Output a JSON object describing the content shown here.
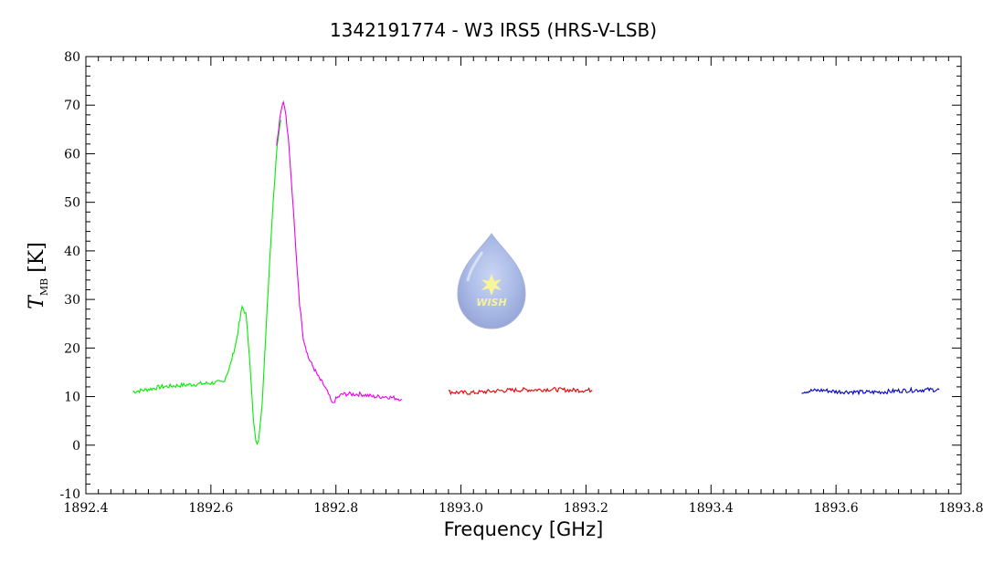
{
  "chart_data": {
    "type": "line",
    "title": "1342191774 - W3 IRS5 (HRS-V-LSB)",
    "xlabel": "Frequency [GHz]",
    "ylabel": {
      "main": "T",
      "sub": "MB",
      "unit": "[K]"
    },
    "xlim": [
      1892.4,
      1893.8
    ],
    "ylim": [
      -10,
      80
    ],
    "x_ticks": [
      "1892.4",
      "1892.6",
      "1892.8",
      "1893.0",
      "1893.2",
      "1893.4",
      "1893.6",
      "1893.8"
    ],
    "y_ticks": [
      "-10",
      "0",
      "10",
      "20",
      "30",
      "40",
      "50",
      "60",
      "70",
      "80"
    ],
    "grid": false,
    "logo": {
      "text": "WISH"
    },
    "series": [
      {
        "color": "#00ee00",
        "x": [
          1892.475,
          1892.5,
          1892.52,
          1892.54,
          1892.56,
          1892.58,
          1892.6,
          1892.62,
          1892.63,
          1892.64,
          1892.65,
          1892.656,
          1892.662,
          1892.668,
          1892.672,
          1892.676,
          1892.682,
          1892.688,
          1892.694,
          1892.7,
          1892.706,
          1892.712
        ],
        "y": [
          11.0,
          11.5,
          12.0,
          12.2,
          12.4,
          12.6,
          12.8,
          13.0,
          16.0,
          21.0,
          28.5,
          27.0,
          18.0,
          5.0,
          0.5,
          0.5,
          9.0,
          23.0,
          38.0,
          51.0,
          62.0,
          67.0
        ]
      },
      {
        "color": "#ee00ee",
        "x": [
          1892.705,
          1892.712,
          1892.716,
          1892.72,
          1892.724,
          1892.73,
          1892.736,
          1892.742,
          1892.748,
          1892.756,
          1892.764,
          1892.772,
          1892.78,
          1892.788,
          1892.794,
          1892.8,
          1892.81,
          1892.82,
          1892.84,
          1892.86,
          1892.88,
          1892.905
        ],
        "y": [
          62.0,
          69.0,
          71.0,
          68.0,
          63.0,
          52.0,
          40.0,
          29.0,
          22.0,
          18.0,
          16.0,
          14.0,
          12.5,
          10.5,
          8.5,
          9.5,
          10.5,
          10.5,
          10.5,
          10.0,
          10.0,
          9.5
        ]
      },
      {
        "color": "#ee0000",
        "x": [
          1892.98,
          1893.0,
          1893.02,
          1893.04,
          1893.06,
          1893.08,
          1893.1,
          1893.12,
          1893.14,
          1893.16,
          1893.18,
          1893.21
        ],
        "y": [
          11.0,
          10.8,
          10.8,
          11.0,
          11.2,
          11.3,
          11.4,
          11.4,
          11.5,
          11.4,
          11.3,
          11.3
        ]
      },
      {
        "color": "#0000cc",
        "x": [
          1893.545,
          1893.56,
          1893.58,
          1893.6,
          1893.62,
          1893.64,
          1893.66,
          1893.68,
          1893.7,
          1893.72,
          1893.74,
          1893.765
        ],
        "y": [
          11.0,
          11.2,
          11.3,
          11.0,
          11.0,
          10.9,
          10.9,
          11.0,
          11.2,
          11.3,
          11.4,
          11.4
        ]
      }
    ]
  }
}
